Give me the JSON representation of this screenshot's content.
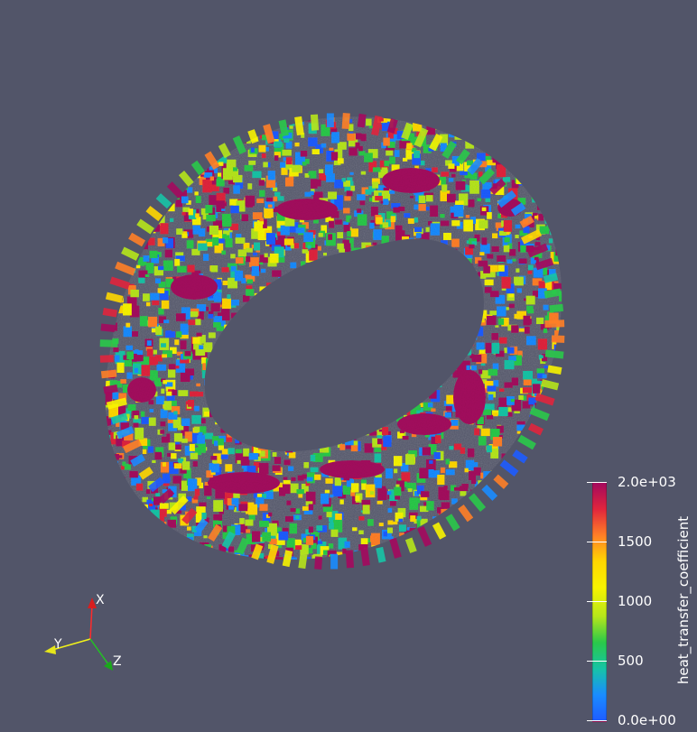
{
  "viewer": {
    "background": "#525569",
    "scalar_name": "heat_transfer_coefficient"
  },
  "colorbar": {
    "title": "heat_transfer_coefficient",
    "labels": [
      "2.0e+03",
      "1500",
      "1000",
      "500",
      "0.0e+00"
    ],
    "colors": [
      "#a4095e",
      "#e0253d",
      "#ff7f27",
      "#ffd700",
      "#f7f300",
      "#b6e61b",
      "#2ac94a",
      "#17c4a6",
      "#1a8cff",
      "#1e5cff"
    ]
  },
  "axes": {
    "x_label": "X",
    "y_label": "Y",
    "z_label": "Z",
    "x_color": "#ff2b2b",
    "y_color": "#f2f21a",
    "z_color": "#22c422"
  }
}
